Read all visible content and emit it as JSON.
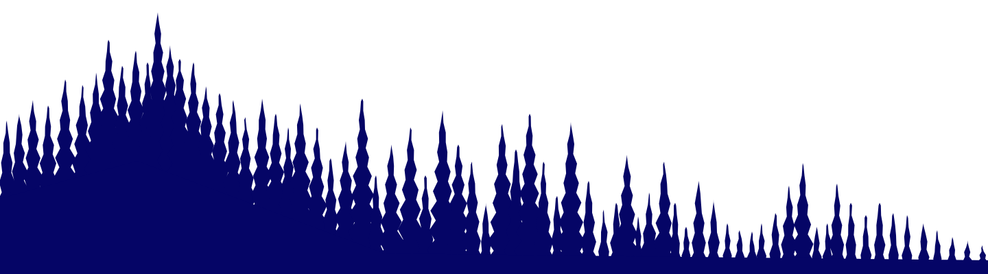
{
  "scene": {
    "background_color": "#ffffff",
    "fill_color": "#050566",
    "subject": "forest-silhouette"
  }
}
